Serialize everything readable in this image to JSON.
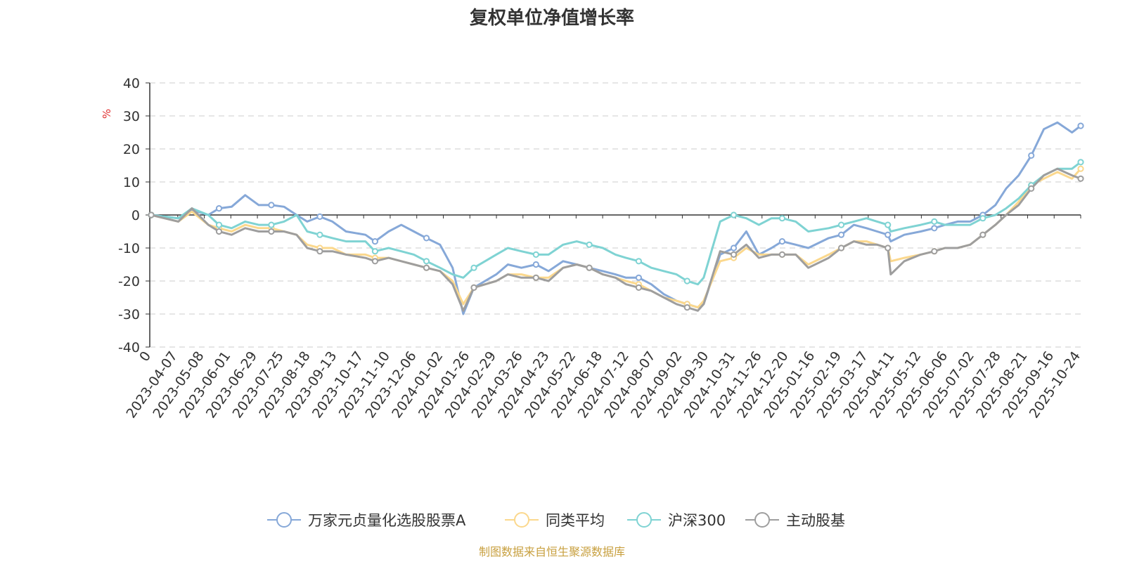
{
  "chart_data": {
    "type": "line",
    "title": "复权单位净值增长率",
    "ylabel": "%",
    "ylim": [
      -40,
      40
    ],
    "yticks": [
      -40,
      -30,
      -20,
      -10,
      0,
      10,
      20,
      30,
      40
    ],
    "x_tick_labels": [
      "0",
      "2023-04-07",
      "2023-05-08",
      "2023-06-01",
      "2023-06-29",
      "2023-07-25",
      "2023-08-18",
      "2023-09-13",
      "2023-10-17",
      "2023-11-10",
      "2023-12-06",
      "2024-01-02",
      "2024-01-26",
      "2024-02-29",
      "2024-03-26",
      "2024-04-23",
      "2024-05-22",
      "2024-06-18",
      "2024-07-12",
      "2024-08-07",
      "2024-09-02",
      "2024-09-30",
      "2024-10-31",
      "2024-11-26",
      "2024-12-20",
      "2025-01-16",
      "2025-02-19",
      "2025-03-17",
      "2025-04-11",
      "2025-05-12",
      "2025-06-06",
      "2025-07-02",
      "2025-07-28",
      "2025-08-21",
      "2025-09-16",
      "2025-10-24"
    ],
    "grid": "horizontal-dashed",
    "legend_position": "bottom",
    "source_note": "制图数据来自恒生聚源数据库",
    "x": [
      "2023-03-10",
      "2023-04-07",
      "2023-04-21",
      "2023-05-08",
      "2023-05-19",
      "2023-06-01",
      "2023-06-15",
      "2023-06-29",
      "2023-07-12",
      "2023-07-25",
      "2023-08-07",
      "2023-08-18",
      "2023-08-31",
      "2023-09-13",
      "2023-09-27",
      "2023-10-17",
      "2023-10-27",
      "2023-11-10",
      "2023-11-23",
      "2023-12-06",
      "2023-12-19",
      "2024-01-02",
      "2024-01-15",
      "2024-01-26",
      "2024-02-06",
      "2024-02-29",
      "2024-03-12",
      "2024-03-26",
      "2024-04-10",
      "2024-04-23",
      "2024-05-08",
      "2024-05-22",
      "2024-06-04",
      "2024-06-18",
      "2024-07-01",
      "2024-07-12",
      "2024-07-25",
      "2024-08-07",
      "2024-08-20",
      "2024-09-02",
      "2024-09-13",
      "2024-09-24",
      "2024-09-30",
      "2024-10-17",
      "2024-10-31",
      "2024-11-13",
      "2024-11-26",
      "2024-12-09",
      "2024-12-20",
      "2025-01-03",
      "2025-01-16",
      "2025-02-06",
      "2025-02-19",
      "2025-03-04",
      "2025-03-17",
      "2025-03-28",
      "2025-04-08",
      "2025-04-11",
      "2025-04-25",
      "2025-05-12",
      "2025-05-26",
      "2025-06-06",
      "2025-06-19",
      "2025-07-02",
      "2025-07-15",
      "2025-07-28",
      "2025-08-08",
      "2025-08-21",
      "2025-09-03",
      "2025-09-16",
      "2025-09-30",
      "2025-10-15",
      "2025-10-24"
    ],
    "series": [
      {
        "name": "万家元贞量化选股股票A",
        "color": "#86a8d8",
        "values": [
          0,
          -1,
          1.5,
          0,
          2,
          2.5,
          6,
          3,
          3,
          2.5,
          0,
          -2,
          -0.5,
          -2,
          -5,
          -6,
          -8,
          -5,
          -3,
          -5,
          -7,
          -9,
          -16,
          -30,
          -22,
          -18,
          -15,
          -16,
          -15,
          -17,
          -14,
          -15,
          -16,
          -17,
          -18,
          -19,
          -19,
          -21,
          -24,
          -26,
          -27,
          -28,
          -27,
          -12,
          -10,
          -5,
          -12,
          -10,
          -8,
          -9,
          -10,
          -7,
          -6,
          -3,
          -4,
          -5,
          -6,
          -8,
          -6,
          -5,
          -4,
          -3,
          -2,
          -2,
          0,
          3,
          8,
          12,
          18,
          26,
          28,
          25,
          27
        ]
      },
      {
        "name": "同类平均",
        "color": "#fbd88d",
        "values": [
          0,
          -2,
          1,
          -3,
          -4,
          -5,
          -3,
          -4,
          -4,
          -5,
          -6,
          -9,
          -10,
          -10,
          -12,
          -12,
          -13,
          -13,
          -14,
          -15,
          -16,
          -17,
          -20,
          -27,
          -22,
          -20,
          -18,
          -18,
          -19,
          -19,
          -16,
          -15,
          -16,
          -18,
          -19,
          -20,
          -21,
          -23,
          -25,
          -26,
          -27,
          -28,
          -26,
          -14,
          -13,
          -10,
          -12,
          -12,
          -12,
          -12,
          -15,
          -12,
          -10,
          -8,
          -8,
          -9,
          -10,
          -14,
          -13,
          -12,
          -11,
          -10,
          -10,
          -9,
          -6,
          -3,
          0,
          4,
          9,
          11,
          13,
          11,
          14
        ]
      },
      {
        "name": "沪深300",
        "color": "#7fd3d3",
        "values": [
          0,
          -1,
          2,
          0,
          -3,
          -4,
          -2,
          -3,
          -3,
          -2,
          0,
          -5,
          -6,
          -7,
          -8,
          -8,
          -11,
          -10,
          -11,
          -12,
          -14,
          -16,
          -18,
          -19,
          -16,
          -12,
          -10,
          -11,
          -12,
          -12,
          -9,
          -8,
          -9,
          -10,
          -12,
          -13,
          -14,
          -16,
          -17,
          -18,
          -20,
          -21,
          -19,
          -2,
          0,
          -1,
          -3,
          -1,
          -1,
          -2,
          -5,
          -4,
          -3,
          -2,
          -1,
          -2,
          -3,
          -5,
          -4,
          -3,
          -2,
          -3,
          -3,
          -3,
          -1,
          0,
          2,
          5,
          9,
          12,
          14,
          14,
          16
        ]
      },
      {
        "name": "主动股基",
        "color": "#9e9e9e",
        "values": [
          0,
          -2,
          2,
          -3,
          -5,
          -6,
          -4,
          -5,
          -5,
          -5,
          -6,
          -10,
          -11,
          -11,
          -12,
          -13,
          -14,
          -13,
          -14,
          -15,
          -16,
          -17,
          -21,
          -29,
          -22,
          -20,
          -18,
          -19,
          -19,
          -20,
          -16,
          -15,
          -16,
          -18,
          -19,
          -21,
          -22,
          -23,
          -25,
          -27,
          -28,
          -29,
          -27,
          -11,
          -12,
          -9,
          -13,
          -12,
          -12,
          -12,
          -16,
          -13,
          -10,
          -8,
          -9,
          -9,
          -10,
          -18,
          -14,
          -12,
          -11,
          -10,
          -10,
          -9,
          -6,
          -3,
          0,
          3,
          8,
          12,
          14,
          12,
          11
        ]
      }
    ]
  }
}
